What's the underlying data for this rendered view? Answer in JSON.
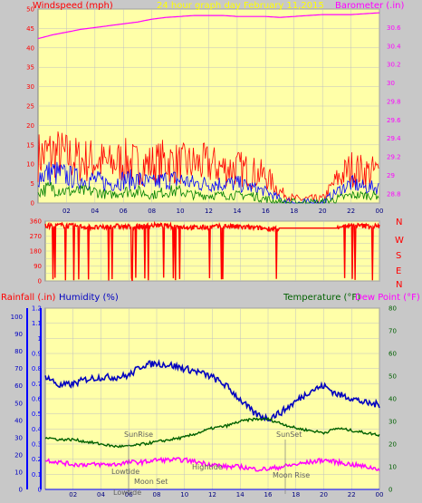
{
  "colors": {
    "background": "#c8c8c8",
    "plot_bg": "#ffffa8",
    "wind_avg": "#008000",
    "wind_mid": "#0000ff",
    "wind_gust": "#ff0000",
    "barometer": "#ff00ff",
    "direction": "#ff0000",
    "rain": "#0000ff",
    "humidity": "#0000c0",
    "temperature": "#006000",
    "dewpoint": "#ff00ff",
    "grid": "#c0c0c0",
    "annotation": "#606060",
    "header_yellow": "#ffff00"
  },
  "header": {
    "left": "Windspeed (mph)",
    "center": "24 hour graph day   February 11,2015",
    "right": "Barometer (.in)"
  },
  "middle": {
    "compass": [
      "N",
      "W",
      "S",
      "E",
      "N"
    ]
  },
  "bottom_labels": {
    "rain": "Rainfall (.in)",
    "humidity": "Humidity (%)",
    "temperature": "Temperature (°F)",
    "dewpoint": "Dew Point (°F)"
  },
  "annotations": {
    "sunrise": "SunRise",
    "sunset": "SunSet",
    "lowtide_1": "Lowtide",
    "lowtide_2": "Lowtide",
    "hightide": "Hightide",
    "moonset": "Moon Set",
    "moonrise": "Moon Rise"
  },
  "chart_data": [
    {
      "type": "line",
      "title": "24 hour graph day   February 11,2015",
      "xlabel": "",
      "x_ticks": [
        "02",
        "04",
        "06",
        "08",
        "10",
        "12",
        "14",
        "16",
        "18",
        "20",
        "22",
        "00"
      ],
      "xlim": [
        0,
        24
      ],
      "ylabel": "Windspeed (mph)",
      "ylim": [
        0,
        50
      ],
      "y_ticks": [
        0,
        5,
        10,
        15,
        20,
        25,
        30,
        35,
        40,
        45,
        50
      ],
      "y2label": "Barometer (.in)",
      "y2lim": [
        28.7,
        30.8
      ],
      "y2_ticks": [
        "28.8",
        "29",
        "29.2",
        "29.4",
        "29.6",
        "29.8",
        "30",
        "30.2",
        "30.4",
        "30.6"
      ],
      "series": [
        {
          "name": "Barometer (.in)",
          "axis": "right",
          "x": [
            0,
            1,
            2,
            3,
            4,
            5,
            6,
            7,
            8,
            9,
            10,
            11,
            12,
            13,
            14,
            15,
            16,
            17,
            18,
            19,
            20,
            21,
            22,
            23,
            24
          ],
          "values": [
            30.48,
            30.52,
            30.55,
            30.58,
            30.6,
            30.62,
            30.64,
            30.66,
            30.69,
            30.71,
            30.72,
            30.73,
            30.73,
            30.73,
            30.72,
            30.72,
            30.72,
            30.71,
            30.72,
            30.73,
            30.74,
            30.74,
            30.74,
            30.75,
            30.76
          ]
        },
        {
          "axis": "left",
          "x": [
            0,
            1,
            2,
            3,
            4,
            5,
            6,
            7,
            8,
            9,
            10,
            11,
            12,
            13,
            14,
            15,
            16,
            17,
            18,
            19,
            20,
            21,
            22,
            23,
            24
          ],
          "values": [
            12,
            13,
            12,
            11,
            11,
            10,
            11,
            10,
            10,
            11,
            10,
            10,
            10,
            9,
            9,
            8,
            7,
            3,
            1,
            1,
            1,
            6,
            9,
            8,
            8
          ]
        },
        {
          "axis": "left",
          "x": [
            0,
            1,
            2,
            3,
            4,
            5,
            6,
            7,
            8,
            9,
            10,
            11,
            12,
            13,
            14,
            15,
            16,
            17,
            18,
            19,
            20,
            21,
            22,
            23,
            24
          ],
          "values": [
            7,
            8,
            7,
            6,
            6,
            5,
            6,
            6,
            5,
            6,
            6,
            5,
            5,
            5,
            5,
            4,
            3,
            1,
            0,
            0,
            0,
            3,
            5,
            4,
            4
          ]
        },
        {
          "axis": "left",
          "x": [
            0,
            1,
            2,
            3,
            4,
            5,
            6,
            7,
            8,
            9,
            10,
            11,
            12,
            13,
            14,
            15,
            16,
            17,
            18,
            19,
            20,
            21,
            22,
            23,
            24
          ],
          "values": [
            3,
            4,
            3,
            3,
            3,
            2,
            3,
            3,
            2,
            3,
            3,
            2,
            2,
            2,
            2,
            2,
            1,
            0,
            0,
            0,
            0,
            1,
            2,
            2,
            2
          ]
        }
      ]
    },
    {
      "type": "scatter",
      "ylabel": "",
      "ylim": [
        0,
        360
      ],
      "y_ticks": [
        0,
        45,
        90,
        135,
        180,
        225,
        270,
        315,
        360
      ],
      "x_ticks": [
        "02",
        "04",
        "06",
        "08",
        "10",
        "12",
        "14",
        "16",
        "18",
        "20",
        "22",
        "00"
      ],
      "xlim": [
        0,
        24
      ],
      "series": [
        {
          "x": [
            0,
            1,
            2,
            3,
            4,
            5,
            6,
            7,
            8,
            9,
            10,
            11,
            12,
            13,
            14,
            15,
            16,
            17,
            18,
            19,
            20,
            21,
            22,
            23,
            24
          ],
          "values": [
            330,
            335,
            330,
            325,
            320,
            330,
            325,
            330,
            335,
            330,
            325,
            320,
            325,
            330,
            325,
            320,
            315,
            318,
            318,
            318,
            318,
            330,
            335,
            330,
            330
          ]
        }
      ]
    },
    {
      "type": "line",
      "x_ticks": [
        "02",
        "04",
        "06",
        "08",
        "10",
        "12",
        "14",
        "16",
        "18",
        "20",
        "22",
        "00"
      ],
      "xlim": [
        0,
        24
      ],
      "ylabel": "Rainfall (.in)",
      "ylim": [
        0,
        1.2
      ],
      "y_ticks": [
        0,
        0.1,
        0.2,
        0.3,
        0.4,
        0.5,
        0.6,
        0.7,
        0.8,
        0.9,
        1,
        1.1,
        1.2
      ],
      "humidity_ticks": [
        0,
        10,
        20,
        30,
        40,
        50,
        60,
        70,
        80,
        90,
        100
      ],
      "y2label": "Temperature (°F)",
      "y2lim": [
        0,
        80
      ],
      "y2_ticks": [
        0,
        10,
        20,
        30,
        40,
        50,
        60,
        70,
        80
      ],
      "series": [
        {
          "name": "Humidity (%)",
          "axis": "humidity",
          "x": [
            0,
            1,
            2,
            3,
            4,
            5,
            6,
            7,
            8,
            9,
            10,
            11,
            12,
            13,
            14,
            15,
            16,
            17,
            18,
            19,
            20,
            21,
            22,
            23,
            24
          ],
          "values": [
            66,
            60,
            61,
            64,
            65,
            65,
            66,
            72,
            73,
            72,
            70,
            68,
            65,
            60,
            52,
            44,
            41,
            45,
            51,
            57,
            60,
            55,
            53,
            50,
            49
          ]
        },
        {
          "name": "Temperature (°F)",
          "axis": "right",
          "x": [
            0,
            1,
            2,
            3,
            4,
            5,
            6,
            7,
            8,
            9,
            10,
            11,
            12,
            13,
            14,
            15,
            16,
            17,
            18,
            19,
            20,
            21,
            22,
            23,
            24
          ],
          "values": [
            23,
            22,
            22,
            21,
            20,
            19,
            19,
            20,
            21,
            22,
            23,
            25,
            27,
            28,
            30,
            31,
            31,
            29,
            27,
            26,
            25,
            27,
            26,
            25,
            24
          ]
        },
        {
          "name": "Dew Point (°F)",
          "axis": "right",
          "x": [
            0,
            1,
            2,
            3,
            4,
            5,
            6,
            7,
            8,
            9,
            10,
            11,
            12,
            13,
            14,
            15,
            16,
            17,
            18,
            19,
            20,
            21,
            22,
            23,
            24
          ],
          "values": [
            13,
            12,
            11,
            11,
            11,
            11,
            12,
            12,
            13,
            13,
            13,
            12,
            11,
            10,
            10,
            9,
            9,
            10,
            11,
            12,
            13,
            12,
            11,
            10,
            9
          ]
        },
        {
          "name": "Rainfall (.in)",
          "axis": "left",
          "x": [
            0,
            24
          ],
          "values": [
            0,
            0
          ]
        }
      ]
    }
  ]
}
